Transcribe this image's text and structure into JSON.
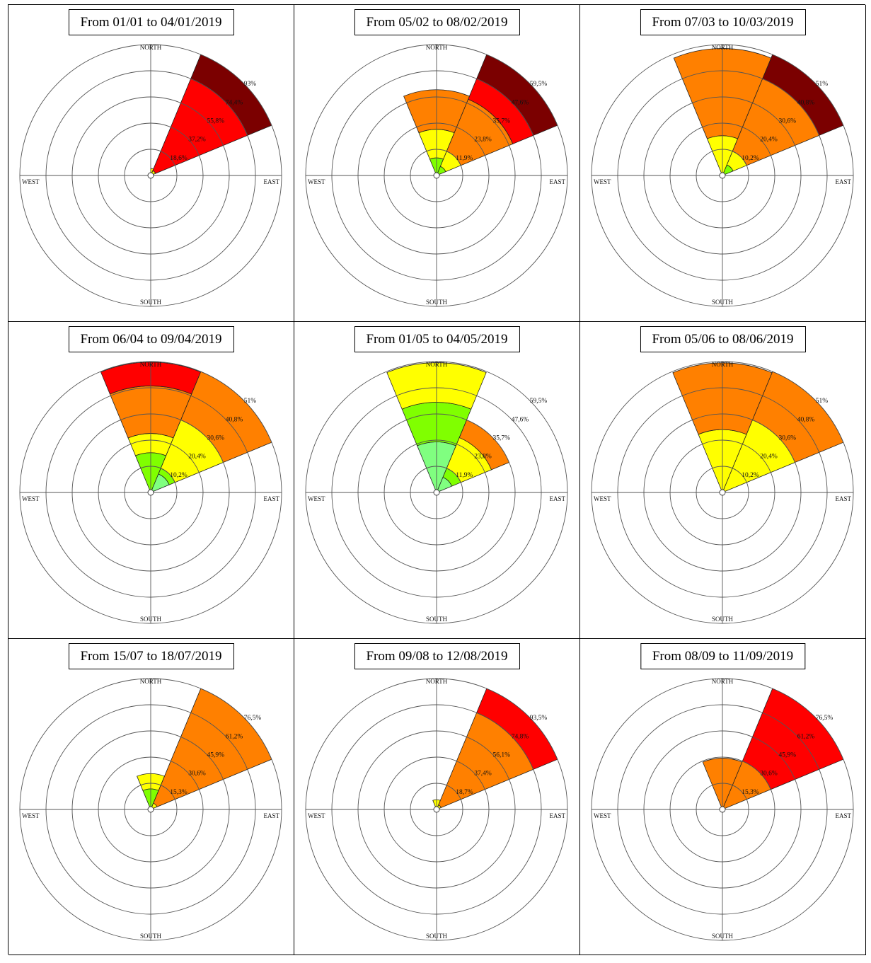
{
  "chart_data": [
    {
      "type": "polar-bar",
      "title": "From 01/01 to 04/01/2019",
      "directions": [
        "NORTH",
        "EAST",
        "SOUTH",
        "WEST"
      ],
      "rmax": 93,
      "ring_labels": [
        "18,6%",
        "37,2%",
        "55,8%",
        "74,4%",
        "93%"
      ],
      "sectors": [
        {
          "start_deg": 22.5,
          "end_deg": 67.5,
          "bands": [
            {
              "from": 0,
              "to": 3.7,
              "color": "#ffff00"
            },
            {
              "from": 3.7,
              "to": 74.4,
              "color": "#ff0000"
            },
            {
              "from": 74.4,
              "to": 93,
              "color": "#7b0000"
            }
          ]
        },
        {
          "start_deg": 0,
          "end_deg": 22.5,
          "bands": [
            {
              "from": 0,
              "to": 5,
              "color": "#ffff00"
            }
          ]
        }
      ]
    },
    {
      "type": "polar-bar",
      "title": "From 05/02 to 08/02/2019",
      "directions": [
        "NORTH",
        "EAST",
        "SOUTH",
        "WEST"
      ],
      "rmax": 59.5,
      "ring_labels": [
        "11,9%",
        "23,8%",
        "35,7%",
        "47,6%",
        "59,5%"
      ],
      "sectors": [
        {
          "start_deg": 22.5,
          "end_deg": 67.5,
          "bands": [
            {
              "from": 0,
              "to": 4.5,
              "color": "#80ff00"
            },
            {
              "from": 4.5,
              "to": 11.9,
              "color": "#ffff00"
            },
            {
              "from": 11.9,
              "to": 37.5,
              "color": "#ff8000"
            },
            {
              "from": 37.5,
              "to": 47.6,
              "color": "#ff0000"
            },
            {
              "from": 47.6,
              "to": 59.5,
              "color": "#7b0000"
            }
          ]
        },
        {
          "start_deg": -22.5,
          "end_deg": 22.5,
          "bands": [
            {
              "from": 0,
              "to": 8,
              "color": "#80ff00"
            },
            {
              "from": 8,
              "to": 21,
              "color": "#ffff00"
            },
            {
              "from": 21,
              "to": 39,
              "color": "#ff8000"
            }
          ]
        }
      ]
    },
    {
      "type": "polar-bar",
      "title": "From 07/03 to 10/03/2019",
      "directions": [
        "NORTH",
        "EAST",
        "SOUTH",
        "WEST"
      ],
      "rmax": 51,
      "ring_labels": [
        "10,2%",
        "20,4%",
        "30,6%",
        "40,8%",
        "51%"
      ],
      "sectors": [
        {
          "start_deg": 22.5,
          "end_deg": 67.5,
          "bands": [
            {
              "from": 0,
              "to": 4.5,
              "color": "#80ff00"
            },
            {
              "from": 4.5,
              "to": 10.2,
              "color": "#ffff00"
            },
            {
              "from": 10.2,
              "to": 40.8,
              "color": "#ff8000"
            },
            {
              "from": 40.8,
              "to": 51,
              "color": "#7b0000"
            }
          ]
        },
        {
          "start_deg": -22.5,
          "end_deg": 22.5,
          "bands": [
            {
              "from": 0,
              "to": 15.5,
              "color": "#ffff00"
            },
            {
              "from": 15.5,
              "to": 49.5,
              "color": "#ff8000"
            }
          ]
        }
      ]
    },
    {
      "type": "polar-bar",
      "title": "From 06/04 to 09/04/2019",
      "directions": [
        "NORTH",
        "EAST",
        "SOUTH",
        "WEST"
      ],
      "rmax": 51,
      "ring_labels": [
        "10,2%",
        "20,4%",
        "30,6%",
        "40,8%",
        "51%"
      ],
      "sectors": [
        {
          "start_deg": 22.5,
          "end_deg": 67.5,
          "bands": [
            {
              "from": 0,
              "to": 7.8,
              "color": "#80ff80"
            },
            {
              "from": 7.8,
              "to": 10.2,
              "color": "#80ff00"
            },
            {
              "from": 10.2,
              "to": 30.6,
              "color": "#ffff00"
            },
            {
              "from": 30.6,
              "to": 51,
              "color": "#ff8000"
            }
          ]
        },
        {
          "start_deg": -22.5,
          "end_deg": 22.5,
          "bands": [
            {
              "from": 0,
              "to": 15.5,
              "color": "#80ff00"
            },
            {
              "from": 15.5,
              "to": 23,
              "color": "#ffff00"
            },
            {
              "from": 23,
              "to": 41.5,
              "color": "#ff8000"
            },
            {
              "from": 41.5,
              "to": 50.8,
              "color": "#ff0000"
            }
          ]
        }
      ]
    },
    {
      "type": "polar-bar",
      "title": "From 01/05 to 04/05/2019",
      "directions": [
        "NORTH",
        "EAST",
        "SOUTH",
        "WEST"
      ],
      "rmax": 59.5,
      "ring_labels": [
        "11,9%",
        "23,8%",
        "35,7%",
        "47,6%",
        "59,5%"
      ],
      "sectors": [
        {
          "start_deg": 22.5,
          "end_deg": 67.5,
          "bands": [
            {
              "from": 0,
              "to": 7.5,
              "color": "#80ff80"
            },
            {
              "from": 7.5,
              "to": 11.9,
              "color": "#80ff00"
            },
            {
              "from": 11.9,
              "to": 27,
              "color": "#ffff00"
            },
            {
              "from": 27,
              "to": 35.7,
              "color": "#ff8000"
            }
          ]
        },
        {
          "start_deg": -22.5,
          "end_deg": 22.5,
          "bands": [
            {
              "from": 0,
              "to": 23,
              "color": "#80ff80"
            },
            {
              "from": 23,
              "to": 41,
              "color": "#80ff00"
            },
            {
              "from": 41,
              "to": 59,
              "color": "#ffff00"
            }
          ]
        }
      ]
    },
    {
      "type": "polar-bar",
      "title": "From 05/06 to 08/06/2019",
      "directions": [
        "NORTH",
        "EAST",
        "SOUTH",
        "WEST"
      ],
      "rmax": 51,
      "ring_labels": [
        "10,2%",
        "20,4%",
        "30,6%",
        "40,8%",
        "51%"
      ],
      "sectors": [
        {
          "start_deg": 22.5,
          "end_deg": 67.5,
          "bands": [
            {
              "from": 0,
              "to": 30.6,
              "color": "#ffff00"
            },
            {
              "from": 30.6,
              "to": 51,
              "color": "#ff8000"
            }
          ]
        },
        {
          "start_deg": -22.5,
          "end_deg": 22.5,
          "bands": [
            {
              "from": 0,
              "to": 24.5,
              "color": "#ffff00"
            },
            {
              "from": 24.5,
              "to": 50.5,
              "color": "#ff8000"
            }
          ]
        }
      ]
    },
    {
      "type": "polar-bar",
      "title": "From 15/07 to 18/07/2019",
      "directions": [
        "NORTH",
        "EAST",
        "SOUTH",
        "WEST"
      ],
      "rmax": 76.5,
      "ring_labels": [
        "15,3%",
        "30,6%",
        "45,9%",
        "61,2%",
        "76,5%"
      ],
      "sectors": [
        {
          "start_deg": 22.5,
          "end_deg": 67.5,
          "bands": [
            {
              "from": 0,
              "to": 4,
              "color": "#ffff00"
            },
            {
              "from": 4,
              "to": 76.5,
              "color": "#ff8000"
            }
          ]
        },
        {
          "start_deg": -22.5,
          "end_deg": 22.5,
          "bands": [
            {
              "from": 0,
              "to": 12,
              "color": "#80ff00"
            },
            {
              "from": 12,
              "to": 21,
              "color": "#ffff00"
            }
          ]
        }
      ]
    },
    {
      "type": "polar-bar",
      "title": "From 09/08 to 12/08/2019",
      "directions": [
        "NORTH",
        "EAST",
        "SOUTH",
        "WEST"
      ],
      "rmax": 93.5,
      "ring_labels": [
        "18,7%",
        "37,4%",
        "56,1%",
        "74,8%",
        "93,5%"
      ],
      "sectors": [
        {
          "start_deg": 22.5,
          "end_deg": 67.5,
          "bands": [
            {
              "from": 0,
              "to": 3.5,
              "color": "#ffff00"
            },
            {
              "from": 3.5,
              "to": 74.8,
              "color": "#ff8000"
            },
            {
              "from": 74.8,
              "to": 93.5,
              "color": "#ff0000"
            }
          ]
        },
        {
          "start_deg": -22.5,
          "end_deg": 22.5,
          "bands": [
            {
              "from": 0,
              "to": 7,
              "color": "#ffff00"
            }
          ]
        }
      ]
    },
    {
      "type": "polar-bar",
      "title": "From 08/09 to 11/09/2019",
      "directions": [
        "NORTH",
        "EAST",
        "SOUTH",
        "WEST"
      ],
      "rmax": 76.5,
      "ring_labels": [
        "15,3%",
        "30,6%",
        "45,9%",
        "61,2%",
        "76,5%"
      ],
      "sectors": [
        {
          "start_deg": 22.5,
          "end_deg": 67.5,
          "bands": [
            {
              "from": 0,
              "to": 30.6,
              "color": "#ff8000"
            },
            {
              "from": 30.6,
              "to": 76.5,
              "color": "#ff0000"
            }
          ]
        },
        {
          "start_deg": -22.5,
          "end_deg": 22.5,
          "bands": [
            {
              "from": 0,
              "to": 30,
              "color": "#ff8000"
            }
          ]
        }
      ]
    }
  ]
}
